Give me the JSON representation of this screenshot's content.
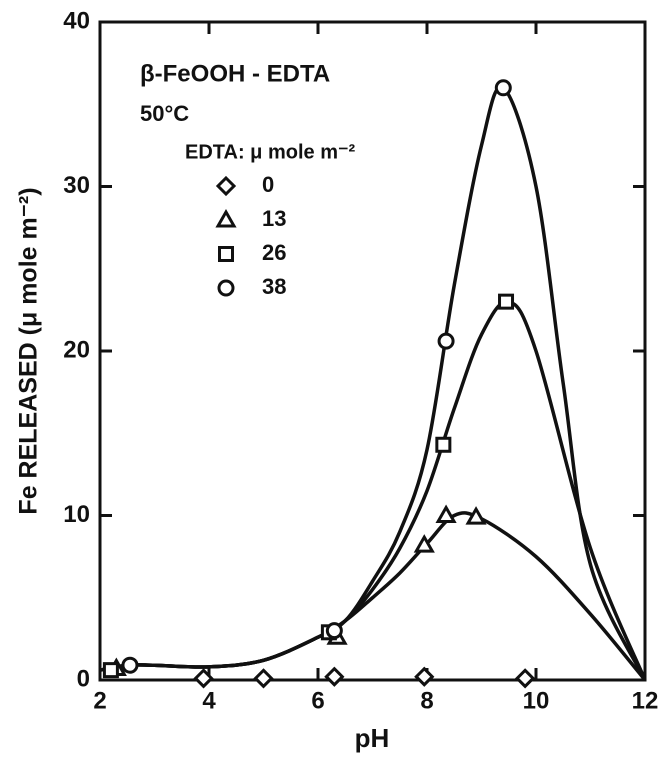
{
  "chart_data": {
    "type": "scatter",
    "title": "β-FeOOH - EDTA",
    "subtitle": "50°C",
    "legend_title": "EDTA: μ mole m⁻²",
    "xlabel": "pH",
    "ylabel": "Fe RELEASED (μ mole m⁻²)",
    "xlim": [
      2,
      12
    ],
    "ylim": [
      0,
      40
    ],
    "xticks": [
      2,
      4,
      6,
      8,
      10,
      12
    ],
    "yticks": [
      0,
      10,
      20,
      30,
      40
    ],
    "series": [
      {
        "name": "0",
        "marker": "diamond",
        "color": "#111111",
        "x": [
          3.9,
          5.0,
          6.3,
          7.95,
          9.8
        ],
        "values": [
          0.1,
          0.1,
          0.2,
          0.2,
          0.1
        ]
      },
      {
        "name": "13",
        "marker": "triangle",
        "color": "#111111",
        "x": [
          2.3,
          6.35,
          7.95,
          8.35,
          8.9
        ],
        "values": [
          0.7,
          2.6,
          8.2,
          10,
          9.9
        ]
      },
      {
        "name": "26",
        "marker": "square",
        "color": "#111111",
        "x": [
          2.2,
          6.2,
          8.3,
          9.45
        ],
        "values": [
          0.6,
          2.9,
          14.3,
          23
        ]
      },
      {
        "name": "38",
        "marker": "circle",
        "color": "#111111",
        "x": [
          2.55,
          6.3,
          8.35,
          9.4
        ],
        "values": [
          0.9,
          3.0,
          20.6,
          36
        ]
      }
    ],
    "curves": [
      {
        "x": [
          2,
          2.5,
          3,
          4,
          5,
          6,
          6.5,
          7,
          7.5,
          8,
          8.5,
          9,
          10,
          11,
          12
        ],
        "y": [
          0.6,
          0.9,
          0.9,
          0.8,
          1.2,
          2.6,
          3.6,
          5,
          6.5,
          8.3,
          10,
          9.8,
          7.5,
          4,
          0
        ]
      },
      {
        "x": [
          2,
          2.5,
          3,
          4,
          5,
          6,
          6.5,
          7,
          7.5,
          8,
          8.5,
          9,
          9.5,
          10,
          11,
          12
        ],
        "y": [
          0.6,
          0.9,
          0.9,
          0.8,
          1.2,
          2.6,
          3.6,
          5.5,
          8,
          11.5,
          16.5,
          21,
          23,
          20,
          8,
          0
        ]
      },
      {
        "x": [
          2,
          2.5,
          3,
          4,
          5,
          6,
          6.5,
          7,
          7.5,
          8,
          8.5,
          9,
          9.4,
          10,
          10.5,
          11,
          12
        ],
        "y": [
          0.6,
          0.9,
          0.9,
          0.8,
          1.2,
          2.6,
          3.6,
          6,
          9,
          14,
          24,
          32.5,
          36,
          30,
          18,
          7,
          0
        ]
      }
    ]
  }
}
